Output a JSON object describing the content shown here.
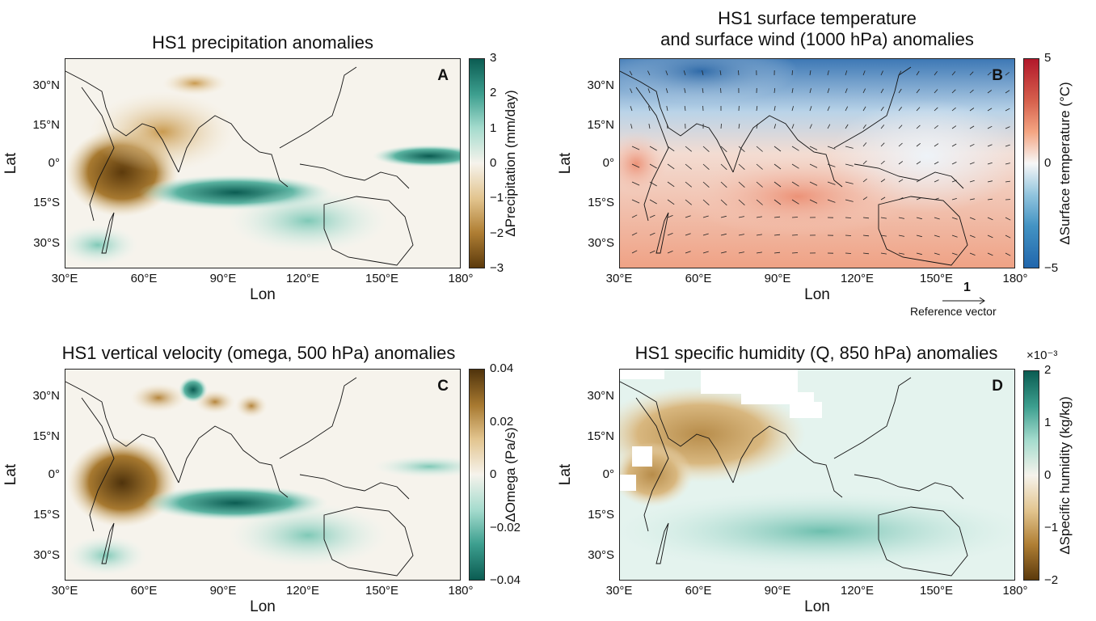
{
  "axis": {
    "lon_ticks": [
      "30°E",
      "60°E",
      "90°E",
      "120°E",
      "150°E",
      "180°"
    ],
    "lat_ticks": [
      "30°N",
      "15°N",
      "0°",
      "15°S",
      "30°S"
    ],
    "xlabel": "Lon",
    "ylabel": "Lat"
  },
  "panels": [
    {
      "letter": "A",
      "title_lines": [
        "HS1 precipitation anomalies"
      ],
      "colorbar": {
        "label": "ΔPrecipitation (mm/day)",
        "ticks": [
          "3",
          "2",
          "1",
          "0",
          "−1",
          "−2",
          "−3"
        ],
        "range": [
          -3,
          3
        ],
        "scheme": "brown-teal",
        "exponent": ""
      }
    },
    {
      "letter": "B",
      "title_lines": [
        "HS1 surface temperature",
        "and surface wind (1000 hPa) anomalies"
      ],
      "colorbar": {
        "label": "ΔSurface temperature (°C)",
        "ticks": [
          "5",
          "0",
          "−5"
        ],
        "range": [
          -5,
          5
        ],
        "scheme": "blue-red",
        "exponent": ""
      },
      "reference_vector": {
        "value": "1",
        "label": "Reference vector"
      }
    },
    {
      "letter": "C",
      "title_lines": [
        "HS1 vertical velocity (omega, 500 hPa) anomalies"
      ],
      "colorbar": {
        "label": "ΔOmega (Pa/s)",
        "ticks": [
          "0.04",
          "0.02",
          "0",
          "−0.02",
          "−0.04"
        ],
        "range": [
          -0.04,
          0.04
        ],
        "scheme": "teal-brown",
        "exponent": ""
      }
    },
    {
      "letter": "D",
      "title_lines": [
        "HS1 specific humidity (Q, 850 hPa) anomalies"
      ],
      "colorbar": {
        "label": "ΔSpecific humidity (kg/kg)",
        "ticks": [
          "2",
          "1",
          "0",
          "−1",
          "−2"
        ],
        "range": [
          -2.5,
          2.5
        ],
        "scheme": "brown-teal",
        "exponent": "×10⁻³"
      }
    }
  ],
  "colors": {
    "brown": "#5c3a0c",
    "tan": "#d9b77a",
    "teal": "#0b5c52",
    "mint": "#9fd8c8",
    "blue": "#2166ac",
    "red": "#b2182b"
  }
}
